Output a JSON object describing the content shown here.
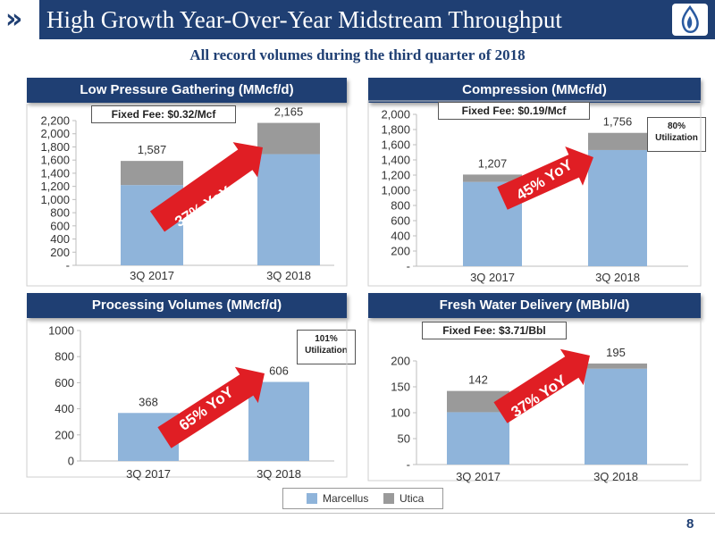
{
  "header": {
    "title": "High Growth Year-Over-Year Midstream Throughput",
    "subtitle": "All record volumes during the third quarter of 2018"
  },
  "legend": {
    "items": [
      {
        "label": "Marcellus",
        "color": "#8fb4da"
      },
      {
        "label": "Utica",
        "color": "#9a9a9a"
      }
    ]
  },
  "page_number": "8",
  "chart_data": [
    {
      "type": "bar",
      "stacked": true,
      "title": "Low Pressure Gathering (MMcf/d)",
      "fee": "Fixed Fee: $0.32/Mcf",
      "growth": "37% YoY",
      "categories": [
        "3Q 2017",
        "3Q 2018"
      ],
      "series": [
        {
          "name": "Marcellus",
          "values": [
            1220,
            1690
          ]
        },
        {
          "name": "Utica",
          "values": [
            367,
            475
          ]
        }
      ],
      "totals": [
        "1,587",
        "2,165"
      ],
      "ylim": [
        0,
        2200
      ],
      "yticks": [
        "-",
        "200",
        "400",
        "600",
        "800",
        "1,000",
        "1,200",
        "1,400",
        "1,600",
        "1,800",
        "2,000",
        "2,200"
      ]
    },
    {
      "type": "bar",
      "stacked": true,
      "title": "Compression (MMcf/d)",
      "fee": "Fixed Fee: $0.19/Mcf",
      "growth": "45% YoY",
      "utilization": "80% Utilization",
      "categories": [
        "3Q 2017",
        "3Q 2018"
      ],
      "series": [
        {
          "name": "Marcellus",
          "values": [
            1110,
            1530
          ]
        },
        {
          "name": "Utica",
          "values": [
            97,
            226
          ]
        }
      ],
      "totals": [
        "1,207",
        "1,756"
      ],
      "ylim": [
        0,
        2000
      ],
      "yticks": [
        "-",
        "200",
        "400",
        "600",
        "800",
        "1,000",
        "1,200",
        "1,400",
        "1,600",
        "1,800",
        "2,000"
      ]
    },
    {
      "type": "bar",
      "stacked": true,
      "title": "Processing Volumes (MMcf/d)",
      "growth": "65% YoY",
      "utilization": "101% Utilization",
      "categories": [
        "3Q 2017",
        "3Q 2018"
      ],
      "series": [
        {
          "name": "Marcellus",
          "values": [
            368,
            606
          ]
        },
        {
          "name": "Utica",
          "values": [
            0,
            0
          ]
        }
      ],
      "totals": [
        "368",
        "606"
      ],
      "ylim": [
        0,
        1000
      ],
      "yticks": [
        "0",
        "200",
        "400",
        "600",
        "800",
        "1000"
      ]
    },
    {
      "type": "bar",
      "stacked": true,
      "title": "Fresh Water Delivery (MBbl/d)",
      "fee": "Fixed Fee: $3.71/Bbl",
      "growth": "37% YoY",
      "categories": [
        "3Q 2017",
        "3Q 2018"
      ],
      "series": [
        {
          "name": "Marcellus",
          "values": [
            101,
            185
          ]
        },
        {
          "name": "Utica",
          "values": [
            41,
            10
          ]
        }
      ],
      "totals": [
        "142",
        "195"
      ],
      "ylim": [
        0,
        200
      ],
      "yticks": [
        "-",
        "50",
        "100",
        "150",
        "200"
      ]
    }
  ]
}
